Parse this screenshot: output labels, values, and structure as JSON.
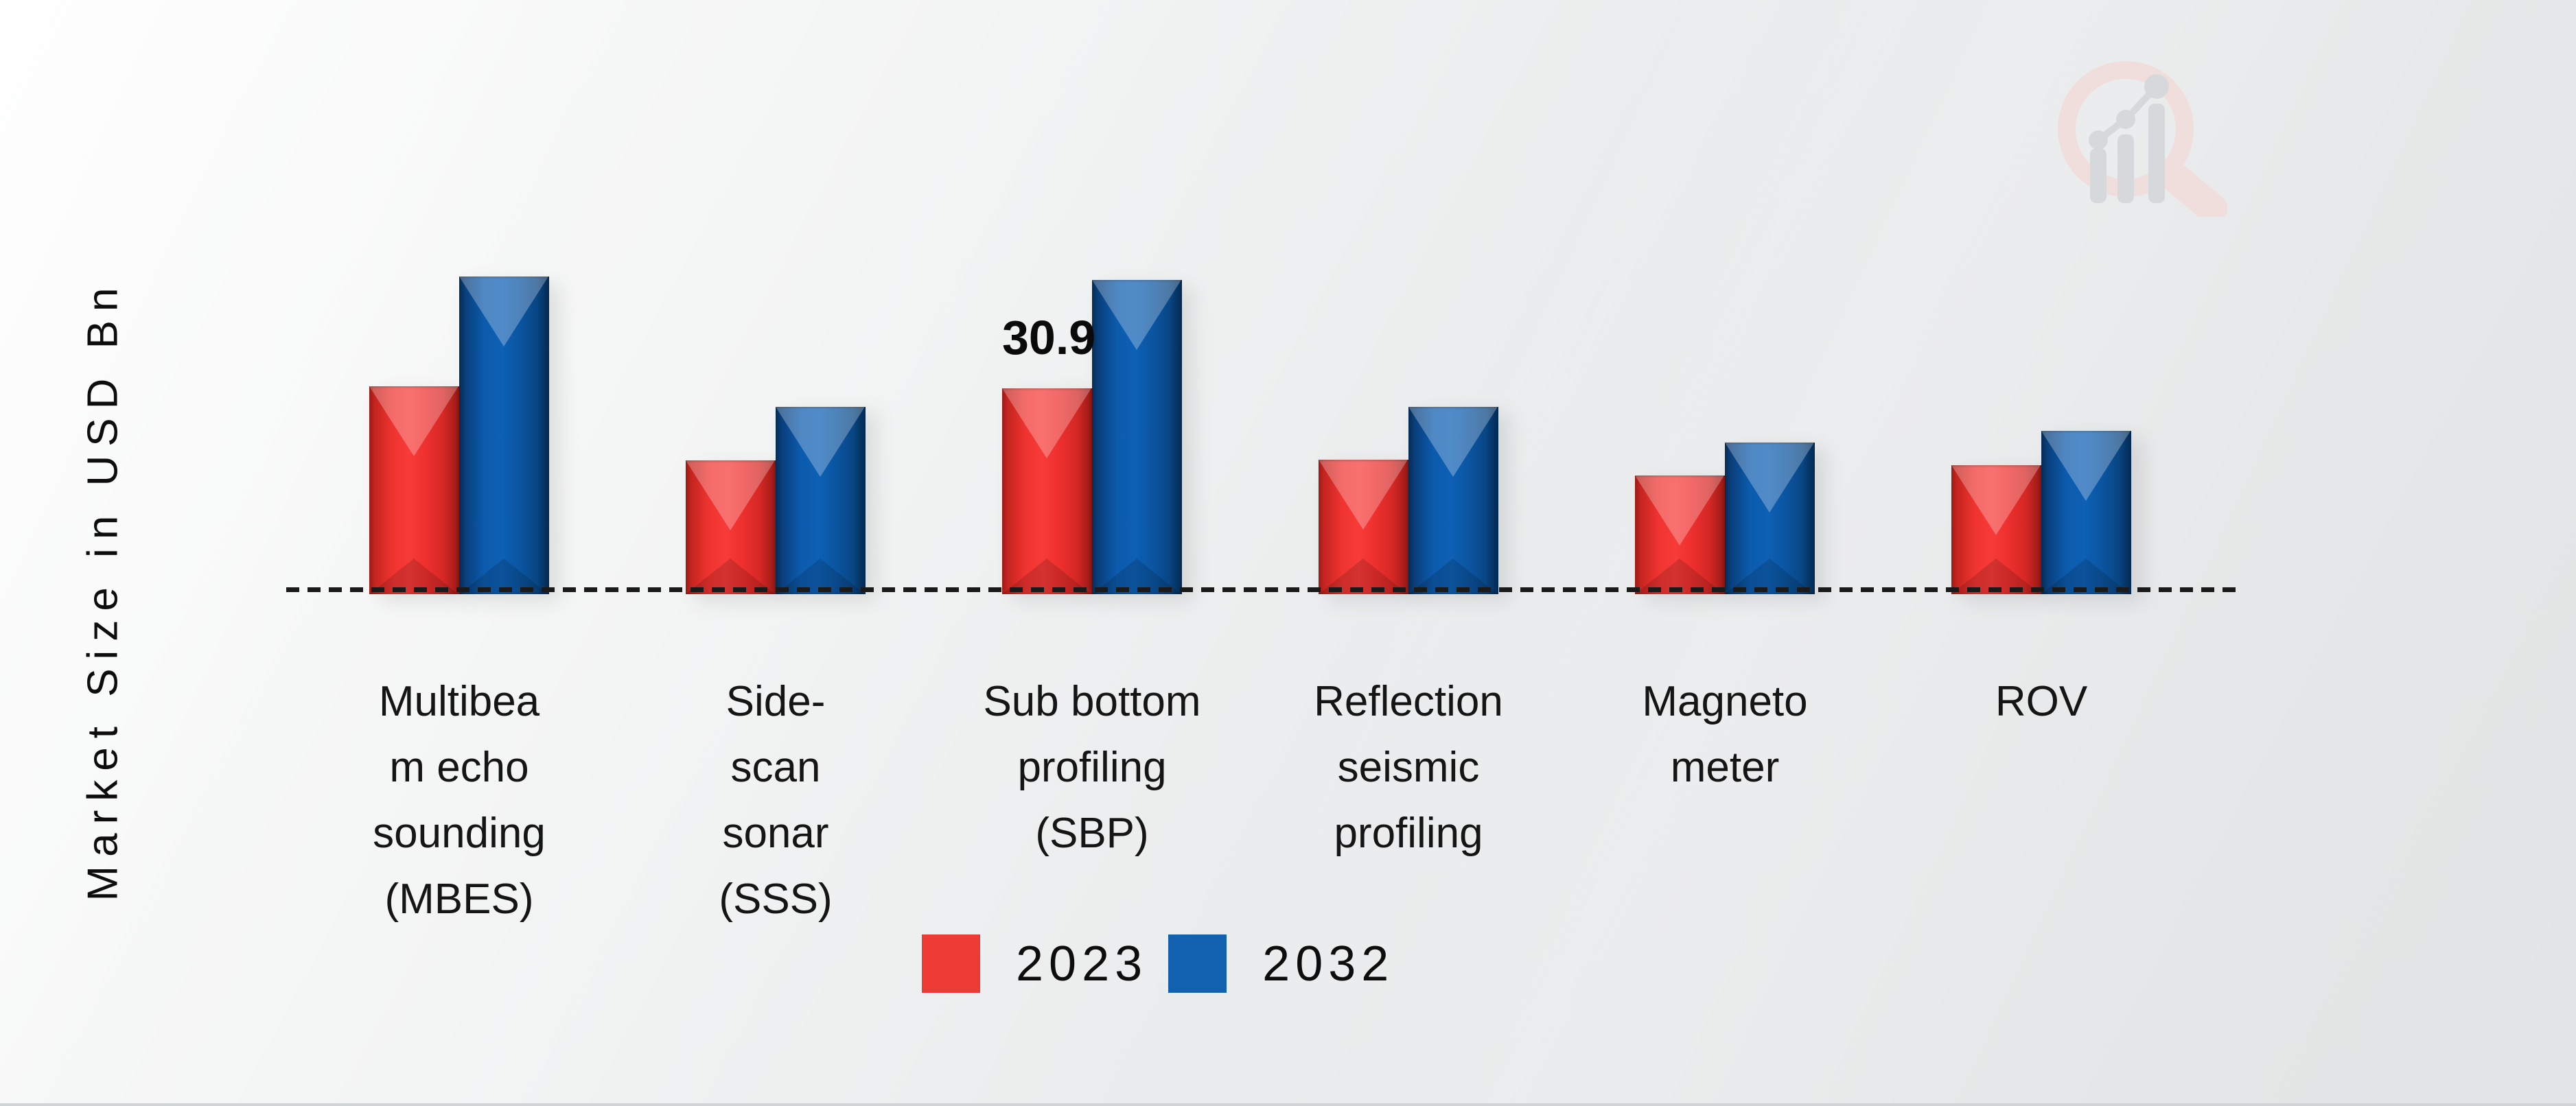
{
  "chart": {
    "y_axis_label": "Market Size in USD Bn",
    "background_color": "#e9ebec",
    "baseline_style": "dashed"
  },
  "legend": {
    "items": [
      {
        "label": "2023",
        "color": "#ee3a35"
      },
      {
        "label": "2032",
        "color": "#1161ae"
      }
    ]
  },
  "watermark": {
    "icon": "growth-bars-magnifier-logo",
    "ring_color": "#f2dcda",
    "bars_color": "#d2d6d9"
  },
  "chart_data": {
    "type": "bar",
    "title": "",
    "xlabel": "",
    "ylabel": "Market Size in USD Bn",
    "ylim": [
      0,
      55
    ],
    "grid": false,
    "legend_position": "bottom-center",
    "categories": [
      "Multibeam echo sounding (MBES)",
      "Side-scan sonar (SSS)",
      "Sub bottom profiling (SBP)",
      "Reflection seismic profiling",
      "Magneto meter",
      "ROV"
    ],
    "category_display_lines": [
      "Multibea\nm echo\nsounding\n(MBES)",
      "Side-\nscan\nsonar\n(SSS)",
      "Sub bottom\nprofiling\n(SBP)",
      "Reflection\nseismic\nprofiling",
      "Magneto\nmeter",
      "ROV"
    ],
    "series": [
      {
        "name": "2023",
        "color": "#ee3a35",
        "values": [
          31.2,
          20.1,
          30.9,
          20.2,
          17.8,
          19.4
        ]
      },
      {
        "name": "2032",
        "color": "#1161ae",
        "values": [
          47.7,
          28.1,
          47.2,
          28.1,
          22.8,
          24.5
        ]
      }
    ],
    "annotations": [
      {
        "text": "30.9",
        "series": "2023",
        "category": "Sub bottom profiling (SBP)",
        "value": 30.9
      }
    ]
  }
}
